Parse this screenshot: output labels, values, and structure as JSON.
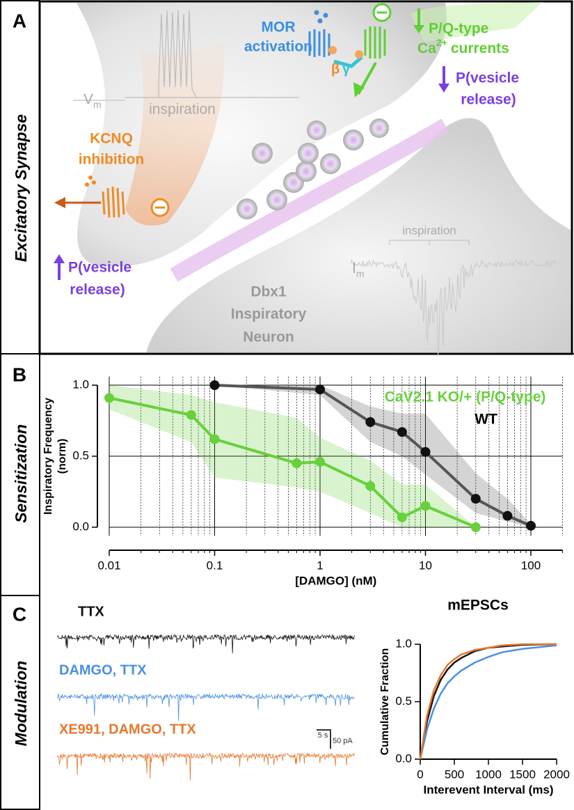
{
  "panel_a": {
    "label": "A",
    "side_label": "Excitatory Synapse",
    "mor": [
      "MOR",
      "activation"
    ],
    "beta": "β",
    "gamma": "γ",
    "pq": "P/Q-type",
    "ca": [
      "Ca",
      "2+",
      "currents"
    ],
    "p_release_right": [
      "P(vesicle",
      "release)"
    ],
    "kcnq": [
      "KCNQ",
      "inhibition"
    ],
    "vm": [
      "V",
      "m"
    ],
    "inspiration_top": "inspiration",
    "inspiration_bottom": "inspiration",
    "im": [
      "I",
      "m"
    ],
    "neuron": [
      "Dbx1",
      "Inspiratory",
      "Neuron"
    ],
    "p_release_left": [
      "P(vesicle",
      "release)"
    ]
  },
  "panel_b": {
    "label": "B",
    "side_label": "Sensitization"
  },
  "panel_c": {
    "label": "C",
    "side_label": "Modulation",
    "scale_time": "5 s",
    "scale_current": "50 pA"
  },
  "chart_data": [
    {
      "type": "line",
      "x_label": "[DAMGO] (nM)",
      "y_label": [
        "Inspiratory Frequency",
        "(norm)"
      ],
      "xscale": "log",
      "xlim": [
        0.01,
        200
      ],
      "ylim": [
        -0.06,
        1.06
      ],
      "xticks": [
        0.01,
        0.1,
        1,
        10,
        100
      ],
      "xminor": [
        0.02,
        0.03,
        0.04,
        0.05,
        0.06,
        0.07,
        0.08,
        0.09,
        0.2,
        0.3,
        0.4,
        0.5,
        0.6,
        0.7,
        0.8,
        0.9,
        2,
        3,
        4,
        5,
        6,
        7,
        8,
        9,
        20,
        30,
        40,
        50,
        60,
        70,
        80,
        90,
        200
      ],
      "yticks": [
        {
          "value": 0,
          "label": "0.0"
        },
        {
          "value": 0.5,
          "label": "0.5"
        },
        {
          "value": 1,
          "label": "1.0"
        }
      ],
      "grid": true,
      "markers": true,
      "legend": "top-right",
      "series": [
        {
          "name": "CaV2.1 KO/+ (P/Q-type)",
          "color": "#66d13a",
          "x": [
            0.01,
            0.06,
            0.1,
            0.6,
            1,
            3,
            6,
            10,
            30
          ],
          "values": [
            0.91,
            0.79,
            0.62,
            0.45,
            0.46,
            0.29,
            0.07,
            0.15,
            0.0
          ],
          "upper": [
            1.0,
            0.93,
            0.88,
            0.77,
            0.63,
            0.47,
            0.3,
            0.3,
            0.0
          ],
          "lower": [
            0.83,
            0.6,
            0.35,
            0.28,
            0.25,
            0.1,
            0.0,
            0.0,
            0.0
          ]
        },
        {
          "name": "WT",
          "color": "#555555",
          "x": [
            0.1,
            1,
            3,
            6,
            10,
            30,
            60,
            100
          ],
          "values": [
            1.0,
            0.97,
            0.74,
            0.67,
            0.53,
            0.2,
            0.08,
            0.01
          ],
          "upper": [
            1.0,
            1.0,
            0.85,
            0.8,
            0.8,
            0.38,
            0.2,
            0.02
          ],
          "lower": [
            1.0,
            0.93,
            0.6,
            0.5,
            0.37,
            0.1,
            0.04,
            0.0
          ]
        }
      ]
    },
    {
      "type": "line",
      "title": "mEPSCs",
      "x_label": "Interevent Interval (ms)",
      "y_label": [
        "Cumulative Fraction"
      ],
      "xlim": [
        0,
        2000
      ],
      "ylim": [
        0,
        1
      ],
      "xticks": [
        0,
        500,
        1000,
        1500,
        2000
      ],
      "yticks": [
        {
          "value": 0,
          "label": "0.0"
        },
        {
          "value": 0.5,
          "label": "0.5"
        },
        {
          "value": 1,
          "label": "1.0"
        }
      ],
      "grid": false,
      "markers": false,
      "series": [
        {
          "name": "TTX",
          "color": "#111111",
          "x": [
            0,
            100,
            200,
            300,
            400,
            500,
            600,
            800,
            1000,
            1200,
            1500,
            2000
          ],
          "values": [
            0,
            0.33,
            0.55,
            0.69,
            0.78,
            0.84,
            0.88,
            0.94,
            0.97,
            0.98,
            0.995,
            1.0
          ]
        },
        {
          "name": "DAMGO, TTX",
          "color": "#4a90e2",
          "x": [
            0,
            100,
            200,
            300,
            400,
            500,
            600,
            800,
            1000,
            1200,
            1500,
            2000
          ],
          "values": [
            0,
            0.26,
            0.44,
            0.57,
            0.66,
            0.72,
            0.77,
            0.84,
            0.89,
            0.93,
            0.96,
            0.99
          ]
        },
        {
          "name": "XE991, DAMGO, TTX",
          "color": "#e8772e",
          "x": [
            0,
            100,
            200,
            300,
            400,
            500,
            600,
            800,
            1000,
            1200,
            1500,
            2000
          ],
          "values": [
            0,
            0.38,
            0.6,
            0.73,
            0.82,
            0.87,
            0.91,
            0.95,
            0.97,
            0.99,
            1.0,
            1.0
          ]
        }
      ]
    }
  ]
}
